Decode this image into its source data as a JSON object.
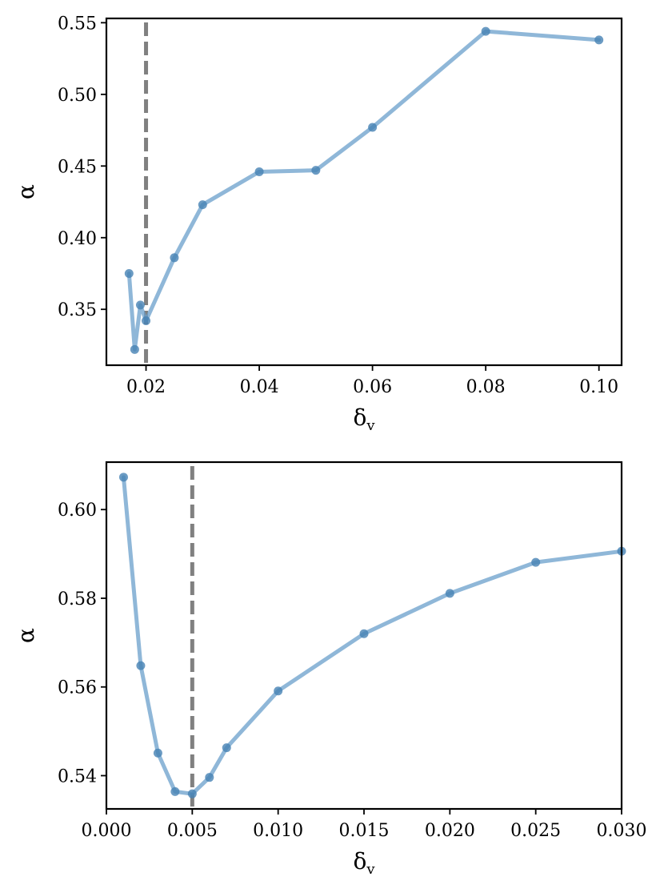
{
  "chart_data": [
    {
      "type": "line",
      "xlabel": "δ",
      "xlabel_sub": "v",
      "ylabel": "α",
      "xlim": [
        0.013,
        0.104
      ],
      "ylim": [
        0.311,
        0.553
      ],
      "xticks": [
        0.02,
        0.04,
        0.06,
        0.08,
        0.1
      ],
      "xtick_labels": [
        "0.02",
        "0.04",
        "0.06",
        "0.08",
        "0.10"
      ],
      "yticks": [
        0.35,
        0.4,
        0.45,
        0.5,
        0.55
      ],
      "ytick_labels": [
        "0.35",
        "0.40",
        "0.45",
        "0.50",
        "0.55"
      ],
      "series": [
        {
          "x": [
            0.017,
            0.018,
            0.019,
            0.02,
            0.025,
            0.03,
            0.04,
            0.05,
            0.06,
            0.08,
            0.1
          ],
          "y": [
            0.375,
            0.322,
            0.353,
            0.342,
            0.386,
            0.423,
            0.446,
            0.447,
            0.477,
            0.544,
            0.538
          ]
        }
      ],
      "vline": 0.02,
      "grid": false,
      "colors": {
        "line": "#6a9fcb",
        "point": "#4682b4",
        "vline": "#808080"
      }
    },
    {
      "type": "line",
      "xlabel": "δ",
      "xlabel_sub": "v",
      "ylabel": "α",
      "xlim": [
        0.0,
        0.03
      ],
      "ylim": [
        0.5325,
        0.6107
      ],
      "xticks": [
        0.0,
        0.005,
        0.01,
        0.015,
        0.02,
        0.025,
        0.03
      ],
      "xtick_labels": [
        "0.000",
        "0.005",
        "0.010",
        "0.015",
        "0.020",
        "0.025",
        "0.030"
      ],
      "yticks": [
        0.54,
        0.56,
        0.58,
        0.6
      ],
      "ytick_labels": [
        "0.54",
        "0.56",
        "0.58",
        "0.60"
      ],
      "series": [
        {
          "x": [
            0.001,
            0.002,
            0.003,
            0.004,
            0.005,
            0.006,
            0.007,
            0.01,
            0.015,
            0.02,
            0.025,
            0.03
          ],
          "y": [
            0.6073,
            0.5648,
            0.5451,
            0.5364,
            0.5359,
            0.5396,
            0.5463,
            0.5591,
            0.572,
            0.5811,
            0.5881,
            0.5906
          ]
        }
      ],
      "vline": 0.005,
      "grid": false,
      "colors": {
        "line": "#6a9fcb",
        "point": "#4682b4",
        "vline": "#808080"
      }
    }
  ]
}
